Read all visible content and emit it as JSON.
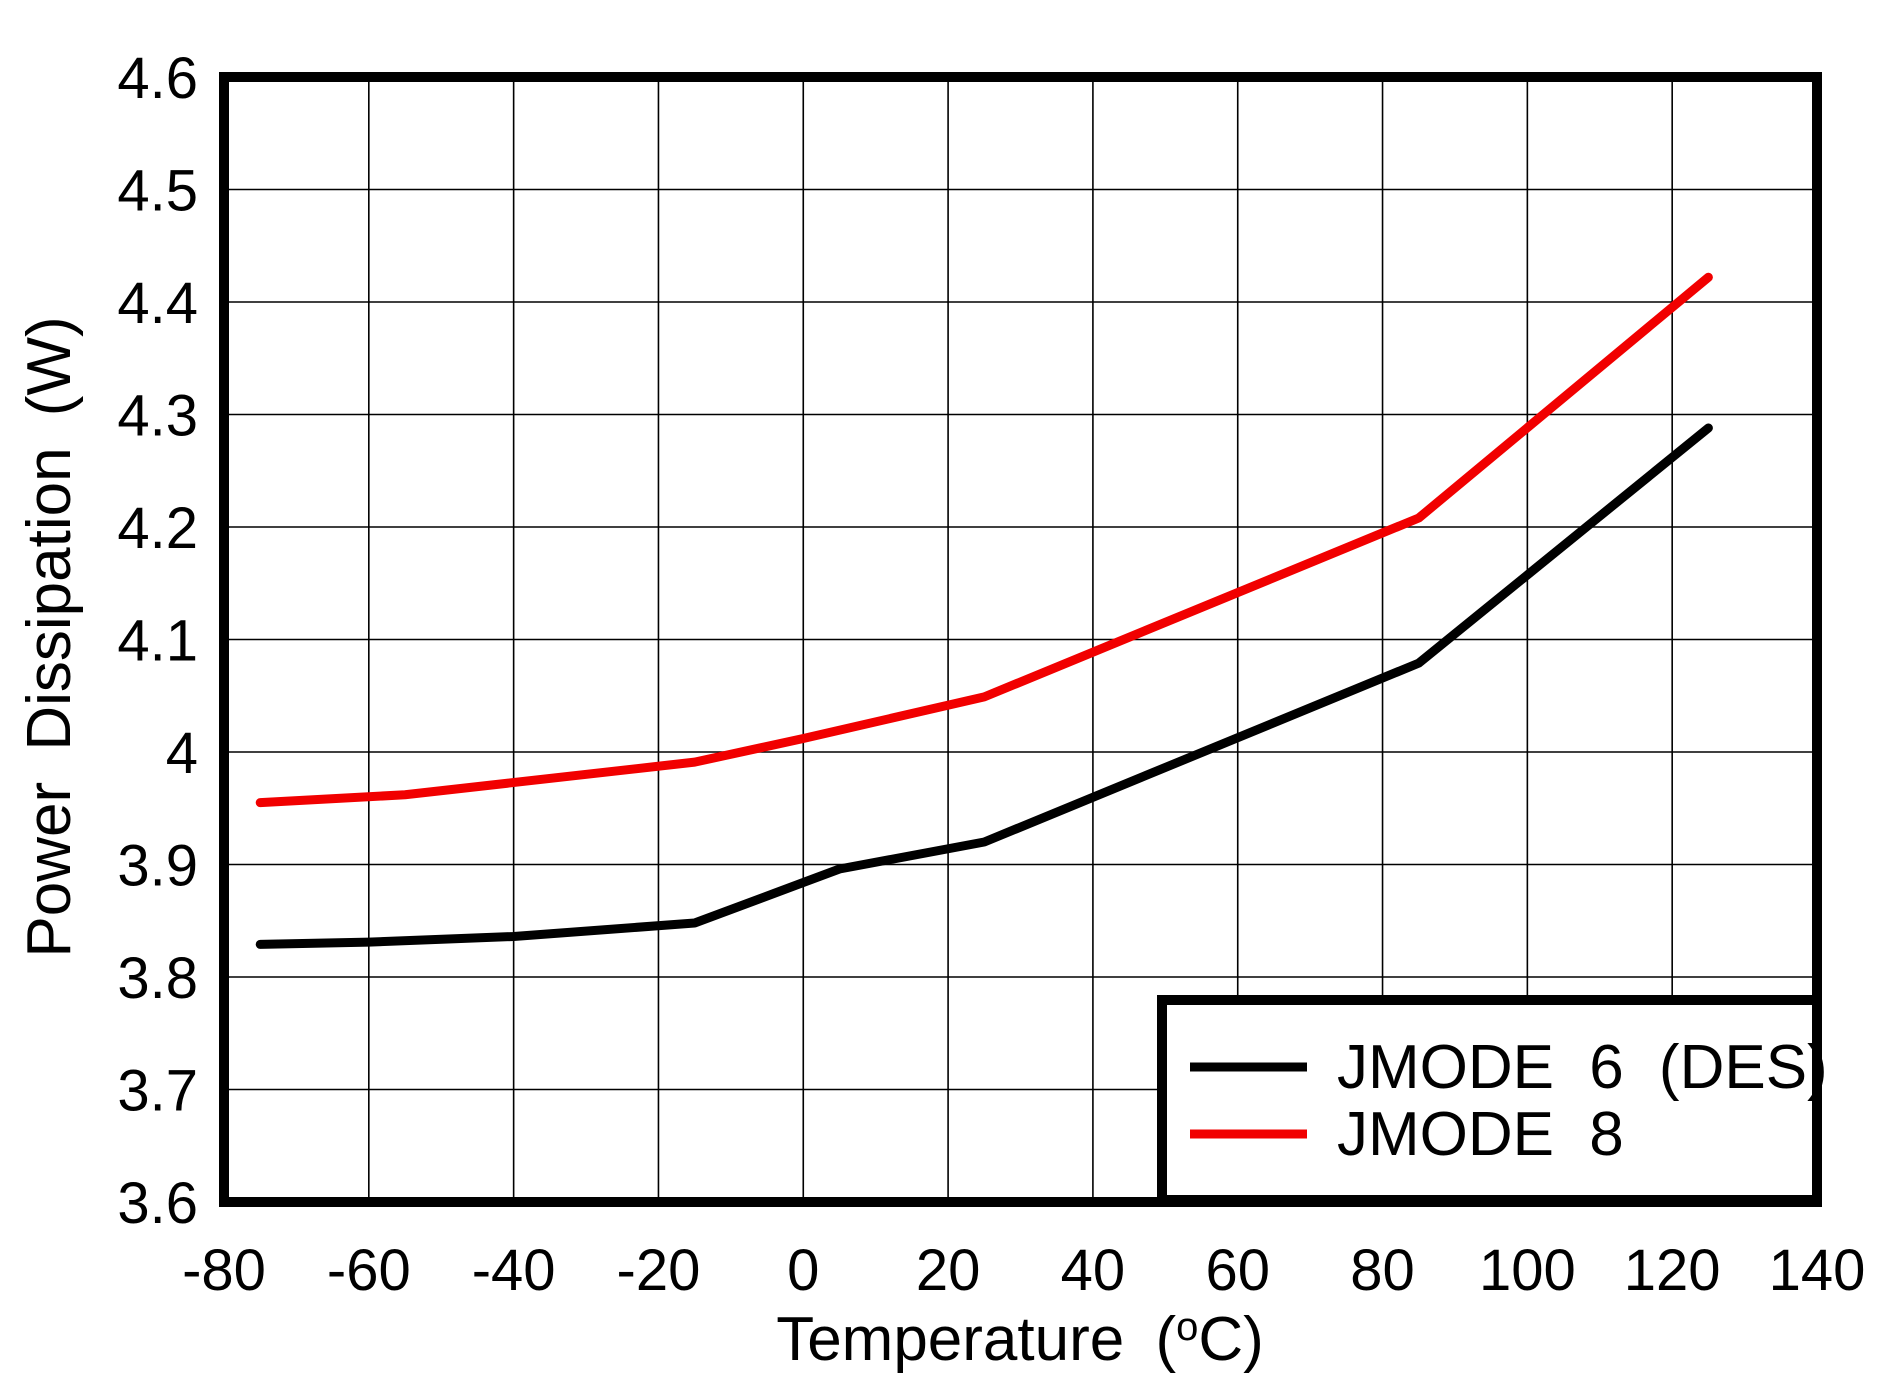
{
  "chart_data": {
    "type": "line",
    "title": "",
    "xlabel": {
      "text": "Temperature (°C)",
      "pre": "Temperature (",
      "sup": "o",
      "post": "C)"
    },
    "ylabel": "Power Dissipation (W)",
    "xlim": [
      -80,
      140
    ],
    "ylim": [
      3.6,
      4.6
    ],
    "x_ticks": {
      "values": [
        -80,
        -60,
        -40,
        -20,
        0,
        20,
        40,
        60,
        80,
        100,
        120,
        140
      ],
      "labels": [
        "-80",
        "-60",
        "-40",
        "-20",
        "0",
        "20",
        "40",
        "60",
        "80",
        "100",
        "120",
        "140"
      ]
    },
    "y_ticks": {
      "values": [
        3.6,
        3.7,
        3.8,
        3.9,
        4.0,
        4.1,
        4.2,
        4.3,
        4.4,
        4.5,
        4.6
      ],
      "labels": [
        "3.6",
        "3.7",
        "3.8",
        "3.9",
        "4",
        "4.1",
        "4.2",
        "4.3",
        "4.4",
        "4.5",
        "4.6"
      ]
    },
    "grid": true,
    "legend": {
      "position": "bottom-right",
      "entries": [
        "JMODE 6 (DES)",
        "JMODE 8"
      ]
    },
    "series": [
      {
        "name": "JMODE 6 (DES)",
        "color": "#000000",
        "points": [
          [
            -75,
            3.829
          ],
          [
            -60,
            3.831
          ],
          [
            -40,
            3.836
          ],
          [
            -15,
            3.848
          ],
          [
            5,
            3.896
          ],
          [
            25,
            3.92
          ],
          [
            85,
            4.079
          ],
          [
            125,
            4.288
          ]
        ]
      },
      {
        "name": "JMODE 8",
        "color": "#f10000",
        "points": [
          [
            -75,
            3.955
          ],
          [
            -55,
            3.962
          ],
          [
            -15,
            3.991
          ],
          [
            0,
            4.012
          ],
          [
            25,
            4.049
          ],
          [
            85,
            4.208
          ],
          [
            125,
            4.422
          ]
        ]
      }
    ],
    "colors": {
      "grid": "#000000",
      "frame": "#000000",
      "background": "#ffffff"
    }
  }
}
